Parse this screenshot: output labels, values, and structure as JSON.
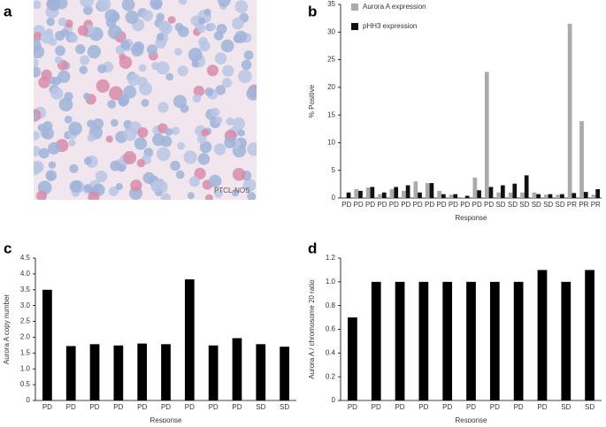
{
  "image": {
    "panel_label": "a",
    "caption": "PTCL-NOS"
  },
  "chart_data": [
    {
      "type": "bar",
      "panel_label": "b",
      "ylabel": "% Positive",
      "xlabel": "Response",
      "legend": "top-left",
      "categories": [
        "PD",
        "PD",
        "PD",
        "PD",
        "PD",
        "PD",
        "PD",
        "PD",
        "PD",
        "PD",
        "PD",
        "PD",
        "PD",
        "SD",
        "SD",
        "SD",
        "SD",
        "SD",
        "SD",
        "PR",
        "PR",
        "PR"
      ],
      "series": [
        {
          "name": "Aurora A expression",
          "color": "#aaaaaa",
          "values": [
            0,
            1.6,
            1.9,
            0.7,
            1.6,
            1.3,
            3.0,
            2.7,
            1.3,
            0.6,
            0.1,
            3.7,
            22.8,
            1.0,
            1.0,
            1.0,
            1.0,
            0.6,
            0.6,
            31.5,
            13.9,
            0.6
          ]
        },
        {
          "name": "pHH3 expression",
          "color": "#111111",
          "values": [
            1.0,
            1.3,
            2.0,
            1.0,
            2.0,
            2.3,
            1.0,
            2.7,
            0.7,
            0.7,
            0.4,
            1.4,
            2.0,
            2.3,
            2.6,
            4.1,
            0.7,
            0.7,
            0.7,
            0.9,
            1.1,
            1.6
          ]
        }
      ],
      "ylim": [
        0,
        35
      ],
      "yticks": [
        0,
        5,
        10,
        15,
        20,
        25,
        30,
        35
      ]
    },
    {
      "type": "bar",
      "panel_label": "c",
      "ylabel": "Aurora A copy number",
      "xlabel": "Response",
      "color": "#000000",
      "categories": [
        "PD",
        "PD",
        "PD",
        "PD",
        "PD",
        "PD",
        "PD",
        "PD",
        "PD",
        "SD",
        "SD"
      ],
      "values": [
        3.5,
        1.72,
        1.78,
        1.74,
        1.8,
        1.78,
        3.83,
        1.74,
        1.97,
        1.78,
        1.7
      ],
      "ylim": [
        0,
        4.5
      ],
      "yticks": [
        0,
        0.5,
        {
          "value": 1,
          "label": "1.0"
        },
        1.5,
        {
          "value": 2,
          "label": "2.0"
        },
        2.5,
        {
          "value": 3,
          "label": "3.0"
        },
        3.5,
        {
          "value": 4,
          "label": "4.0"
        },
        4.5
      ]
    },
    {
      "type": "bar",
      "panel_label": "d",
      "ylabel": "Aurora A / chromosome 20 ratio",
      "xlabel": "Response",
      "color": "#000000",
      "categories": [
        "PD",
        "PD",
        "PD",
        "PD",
        "PD",
        "PD",
        "PD",
        "PD",
        "PD",
        "SD",
        "SD"
      ],
      "values": [
        0.7,
        1.0,
        1.0,
        1.0,
        1.0,
        1.0,
        1.0,
        1.0,
        1.1,
        1.0,
        1.1
      ],
      "ylim": [
        0,
        1.2
      ],
      "yticks": [
        0,
        0.2,
        0.4,
        0.6,
        0.8,
        {
          "value": 1,
          "label": "1.0"
        },
        1.2
      ]
    }
  ]
}
